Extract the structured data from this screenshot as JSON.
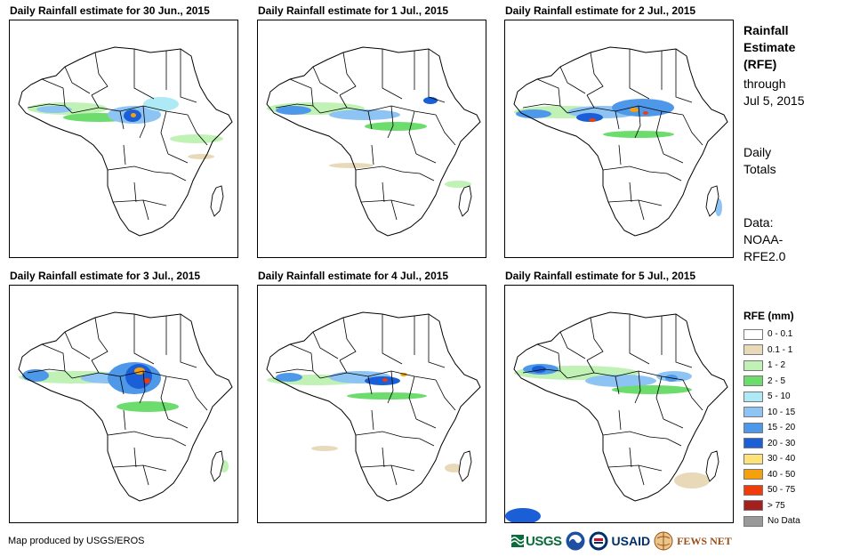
{
  "panels": [
    {
      "title": "Daily Rainfall estimate for 30 Jun., 2015"
    },
    {
      "title": "Daily Rainfall estimate for 1 Jul., 2015"
    },
    {
      "title": "Daily Rainfall estimate for 2 Jul., 2015"
    },
    {
      "title": "Daily Rainfall estimate for 3 Jul., 2015"
    },
    {
      "title": "Daily Rainfall estimate for 4 Jul., 2015"
    },
    {
      "title": "Daily Rainfall estimate for 5 Jul., 2015"
    }
  ],
  "side_info": {
    "heading_line1": "Rainfall",
    "heading_line2": "Estimate",
    "heading_line3": "(RFE)",
    "through_line1": "through",
    "through_line2": "Jul 5, 2015",
    "totals_line1": "Daily",
    "totals_line2": "Totals",
    "data_line1": "Data:",
    "data_line2": "NOAA-",
    "data_line3": "RFE2.0"
  },
  "legend": {
    "title": "RFE (mm)",
    "items": [
      {
        "label": "0 - 0.1",
        "color": "#ffffff"
      },
      {
        "label": "0.1 - 1",
        "color": "#e8d9b8"
      },
      {
        "label": "1 - 2",
        "color": "#bff2b4"
      },
      {
        "label": "2 - 5",
        "color": "#6cdc6c"
      },
      {
        "label": "5 - 10",
        "color": "#aeeaf5"
      },
      {
        "label": "10 - 15",
        "color": "#8ec4f4"
      },
      {
        "label": "15 - 20",
        "color": "#4e98ea"
      },
      {
        "label": "20 - 30",
        "color": "#1a5fd8"
      },
      {
        "label": "30 - 40",
        "color": "#fde27a"
      },
      {
        "label": "40 - 50",
        "color": "#f5a00c"
      },
      {
        "label": "50 - 75",
        "color": "#f03c0a"
      },
      {
        "label": "> 75",
        "color": "#a51f1f"
      },
      {
        "label": "No Data",
        "color": "#999999"
      }
    ]
  },
  "credit": "Map produced by USGS/EROS",
  "logos": {
    "usgs": "USGS",
    "usaid": "USAID",
    "fews": "FEWS NET"
  }
}
